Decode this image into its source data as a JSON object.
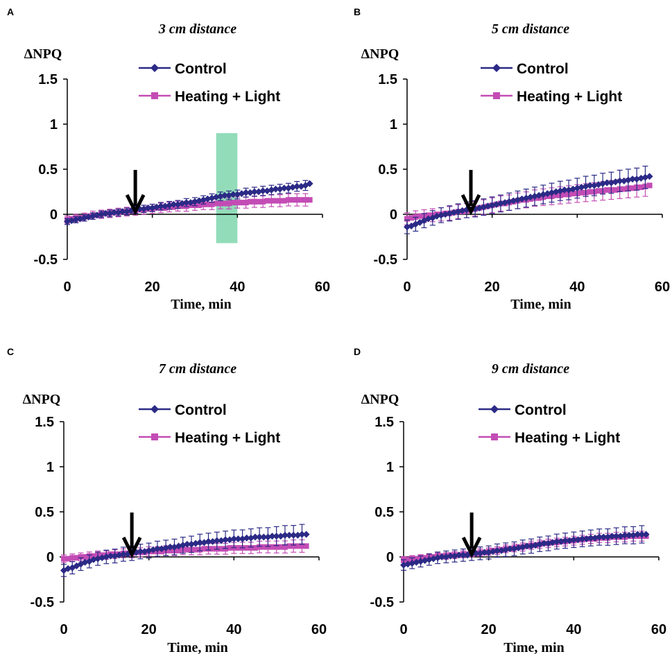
{
  "colors": {
    "control": "#2B2A86",
    "heating": "#C34CB5",
    "highlight": "#7FD6AE"
  },
  "legend": {
    "control": "Control",
    "heating": "Heating + Light"
  },
  "chart_data": [
    {
      "type": "line",
      "panel": "A",
      "title": "3 cm distance",
      "ylabel": "ΔNPQ",
      "xlabel": "Time, min",
      "xlim": [
        0,
        60
      ],
      "ylim": [
        -0.5,
        1.5
      ],
      "xticks": [
        0,
        20,
        40,
        60
      ],
      "yticks": [
        -0.5,
        0,
        0.5,
        1,
        1.5
      ],
      "arrow_x": 16,
      "highlight_band": {
        "x": [
          35,
          40
        ],
        "y": [
          -0.32,
          0.9
        ]
      },
      "x": [
        0,
        1,
        2,
        3,
        4,
        5,
        6,
        7,
        8,
        9,
        10,
        11,
        12,
        13,
        14,
        15,
        16,
        17,
        18,
        19,
        20,
        21,
        22,
        23,
        24,
        25,
        26,
        27,
        28,
        29,
        30,
        31,
        32,
        33,
        34,
        35,
        36,
        37,
        38,
        39,
        40,
        41,
        42,
        43,
        44,
        45,
        46,
        47,
        48,
        49,
        50,
        51,
        52,
        53,
        54,
        55,
        56,
        57
      ],
      "series": [
        {
          "name": "Control",
          "values": [
            -0.08,
            -0.07,
            -0.06,
            -0.05,
            -0.04,
            -0.03,
            -0.02,
            -0.01,
            0.0,
            0.01,
            0.01,
            0.02,
            0.02,
            0.03,
            0.03,
            0.04,
            0.05,
            0.06,
            0.06,
            0.07,
            0.07,
            0.08,
            0.09,
            0.09,
            0.1,
            0.11,
            0.11,
            0.12,
            0.13,
            0.13,
            0.14,
            0.15,
            0.16,
            0.17,
            0.18,
            0.19,
            0.2,
            0.21,
            0.21,
            0.22,
            0.22,
            0.23,
            0.24,
            0.24,
            0.25,
            0.25,
            0.26,
            0.26,
            0.27,
            0.28,
            0.28,
            0.29,
            0.29,
            0.3,
            0.31,
            0.31,
            0.32,
            0.34
          ],
          "err": 0.04
        },
        {
          "name": "Heating + Light",
          "values": [
            -0.06,
            -0.05,
            -0.04,
            -0.04,
            -0.03,
            -0.02,
            -0.01,
            -0.01,
            0.0,
            0.01,
            0.01,
            0.02,
            0.02,
            0.03,
            0.03,
            0.04,
            0.04,
            0.05,
            0.05,
            0.06,
            0.06,
            0.07,
            0.07,
            0.07,
            0.08,
            0.08,
            0.09,
            0.09,
            0.09,
            0.1,
            0.1,
            0.1,
            0.11,
            0.11,
            0.11,
            0.12,
            0.12,
            0.12,
            0.12,
            0.13,
            0.13,
            0.13,
            0.13,
            0.14,
            0.14,
            0.14,
            0.14,
            0.15,
            0.15,
            0.15,
            0.15,
            0.15,
            0.16,
            0.16,
            0.16,
            0.16,
            0.16,
            0.16
          ],
          "err": 0.05
        }
      ]
    },
    {
      "type": "line",
      "panel": "B",
      "title": "5 cm distance",
      "ylabel": "ΔNPQ",
      "xlabel": "Time, min",
      "xlim": [
        0,
        60
      ],
      "ylim": [
        -0.5,
        1.5
      ],
      "xticks": [
        0,
        20,
        40,
        60
      ],
      "yticks": [
        -0.5,
        0,
        0.5,
        1,
        1.5
      ],
      "arrow_x": 15,
      "x": [
        0,
        1,
        2,
        3,
        4,
        5,
        6,
        7,
        8,
        9,
        10,
        11,
        12,
        13,
        14,
        15,
        16,
        17,
        18,
        19,
        20,
        21,
        22,
        23,
        24,
        25,
        26,
        27,
        28,
        29,
        30,
        31,
        32,
        33,
        34,
        35,
        36,
        37,
        38,
        39,
        40,
        41,
        42,
        43,
        44,
        45,
        46,
        47,
        48,
        49,
        50,
        51,
        52,
        53,
        54,
        55,
        56,
        57
      ],
      "series": [
        {
          "name": "Control",
          "values": [
            -0.14,
            -0.13,
            -0.11,
            -0.09,
            -0.07,
            -0.05,
            -0.04,
            -0.02,
            -0.01,
            0.0,
            0.01,
            0.02,
            0.03,
            0.04,
            0.05,
            0.05,
            0.06,
            0.07,
            0.08,
            0.09,
            0.1,
            0.11,
            0.12,
            0.13,
            0.14,
            0.15,
            0.16,
            0.17,
            0.18,
            0.19,
            0.2,
            0.21,
            0.22,
            0.23,
            0.24,
            0.25,
            0.26,
            0.27,
            0.27,
            0.28,
            0.29,
            0.3,
            0.31,
            0.32,
            0.32,
            0.33,
            0.34,
            0.35,
            0.35,
            0.36,
            0.37,
            0.37,
            0.38,
            0.39,
            0.39,
            0.4,
            0.41,
            0.42
          ],
          "err": 0.09
        },
        {
          "name": "Heating + Light",
          "values": [
            -0.05,
            -0.04,
            -0.03,
            -0.02,
            -0.02,
            -0.01,
            -0.01,
            0.0,
            0.0,
            0.01,
            0.01,
            0.02,
            0.03,
            0.03,
            0.04,
            0.05,
            0.06,
            0.07,
            0.08,
            0.09,
            0.1,
            0.11,
            0.12,
            0.12,
            0.13,
            0.14,
            0.15,
            0.16,
            0.16,
            0.17,
            0.18,
            0.18,
            0.19,
            0.2,
            0.2,
            0.21,
            0.21,
            0.22,
            0.22,
            0.23,
            0.23,
            0.24,
            0.24,
            0.25,
            0.25,
            0.26,
            0.26,
            0.27,
            0.27,
            0.27,
            0.28,
            0.28,
            0.29,
            0.29,
            0.3,
            0.3,
            0.31,
            0.32
          ],
          "err": 0.08
        }
      ]
    },
    {
      "type": "line",
      "panel": "C",
      "title": "7 cm distance",
      "ylabel": "ΔNPQ",
      "xlabel": "Time, min",
      "xlim": [
        0,
        60
      ],
      "ylim": [
        -0.5,
        1.5
      ],
      "xticks": [
        0,
        20,
        40,
        60
      ],
      "yticks": [
        -0.5,
        0,
        0.5,
        1,
        1.5
      ],
      "arrow_x": 16,
      "x": [
        0,
        1,
        2,
        3,
        4,
        5,
        6,
        7,
        8,
        9,
        10,
        11,
        12,
        13,
        14,
        15,
        16,
        17,
        18,
        19,
        20,
        21,
        22,
        23,
        24,
        25,
        26,
        27,
        28,
        29,
        30,
        31,
        32,
        33,
        34,
        35,
        36,
        37,
        38,
        39,
        40,
        41,
        42,
        43,
        44,
        45,
        46,
        47,
        48,
        49,
        50,
        51,
        52,
        53,
        54,
        55,
        56,
        57
      ],
      "series": [
        {
          "name": "Control",
          "values": [
            -0.15,
            -0.13,
            -0.12,
            -0.1,
            -0.08,
            -0.06,
            -0.05,
            -0.03,
            -0.02,
            -0.01,
            0.0,
            0.01,
            0.01,
            0.02,
            0.03,
            0.03,
            0.04,
            0.05,
            0.06,
            0.06,
            0.07,
            0.08,
            0.09,
            0.09,
            0.1,
            0.11,
            0.11,
            0.12,
            0.13,
            0.14,
            0.14,
            0.15,
            0.16,
            0.16,
            0.17,
            0.17,
            0.18,
            0.18,
            0.19,
            0.19,
            0.2,
            0.2,
            0.2,
            0.21,
            0.21,
            0.22,
            0.22,
            0.22,
            0.22,
            0.23,
            0.23,
            0.23,
            0.24,
            0.24,
            0.24,
            0.24,
            0.25,
            0.25
          ],
          "err": 0.08
        },
        {
          "name": "Heating + Light",
          "values": [
            -0.02,
            -0.02,
            -0.01,
            -0.01,
            0.0,
            0.0,
            0.01,
            0.01,
            0.02,
            0.02,
            0.02,
            0.03,
            0.03,
            0.03,
            0.04,
            0.04,
            0.04,
            0.05,
            0.05,
            0.05,
            0.06,
            0.06,
            0.06,
            0.06,
            0.07,
            0.07,
            0.07,
            0.07,
            0.08,
            0.08,
            0.08,
            0.08,
            0.08,
            0.09,
            0.09,
            0.09,
            0.09,
            0.09,
            0.09,
            0.1,
            0.1,
            0.1,
            0.1,
            0.1,
            0.1,
            0.1,
            0.11,
            0.11,
            0.11,
            0.11,
            0.11,
            0.11,
            0.11,
            0.12,
            0.12,
            0.12,
            0.12,
            0.12
          ],
          "err": 0.05
        }
      ]
    },
    {
      "type": "line",
      "panel": "D",
      "title": "9 cm distance",
      "ylabel": "ΔNPQ",
      "xlabel": "Time, min",
      "xlim": [
        0,
        60
      ],
      "ylim": [
        -0.5,
        1.5
      ],
      "xticks": [
        0,
        20,
        40,
        60
      ],
      "yticks": [
        -0.5,
        0,
        0.5,
        1,
        1.5
      ],
      "arrow_x": 16,
      "x": [
        0,
        1,
        2,
        3,
        4,
        5,
        6,
        7,
        8,
        9,
        10,
        11,
        12,
        13,
        14,
        15,
        16,
        17,
        18,
        19,
        20,
        21,
        22,
        23,
        24,
        25,
        26,
        27,
        28,
        29,
        30,
        31,
        32,
        33,
        34,
        35,
        36,
        37,
        38,
        39,
        40,
        41,
        42,
        43,
        44,
        45,
        46,
        47,
        48,
        49,
        50,
        51,
        52,
        53,
        54,
        55,
        56,
        57
      ],
      "series": [
        {
          "name": "Control",
          "values": [
            -0.09,
            -0.08,
            -0.07,
            -0.06,
            -0.05,
            -0.04,
            -0.03,
            -0.02,
            -0.01,
            0.0,
            0.0,
            0.01,
            0.01,
            0.02,
            0.02,
            0.02,
            0.03,
            0.04,
            0.04,
            0.05,
            0.05,
            0.06,
            0.07,
            0.07,
            0.08,
            0.09,
            0.09,
            0.1,
            0.11,
            0.12,
            0.12,
            0.13,
            0.14,
            0.15,
            0.15,
            0.16,
            0.17,
            0.17,
            0.18,
            0.18,
            0.19,
            0.19,
            0.2,
            0.2,
            0.21,
            0.21,
            0.22,
            0.22,
            0.22,
            0.23,
            0.23,
            0.23,
            0.24,
            0.24,
            0.24,
            0.25,
            0.25,
            0.25
          ],
          "err": 0.07
        },
        {
          "name": "Heating + Light",
          "values": [
            -0.03,
            -0.03,
            -0.02,
            -0.02,
            -0.01,
            -0.01,
            0.0,
            0.0,
            0.01,
            0.01,
            0.01,
            0.02,
            0.02,
            0.02,
            0.03,
            0.03,
            0.04,
            0.04,
            0.05,
            0.05,
            0.06,
            0.07,
            0.07,
            0.08,
            0.09,
            0.09,
            0.1,
            0.11,
            0.11,
            0.12,
            0.13,
            0.13,
            0.14,
            0.15,
            0.15,
            0.16,
            0.16,
            0.17,
            0.17,
            0.18,
            0.18,
            0.19,
            0.19,
            0.2,
            0.2,
            0.2,
            0.21,
            0.21,
            0.21,
            0.22,
            0.22,
            0.22,
            0.22,
            0.23,
            0.23,
            0.23,
            0.23,
            0.23
          ],
          "err": 0.04
        }
      ]
    }
  ]
}
